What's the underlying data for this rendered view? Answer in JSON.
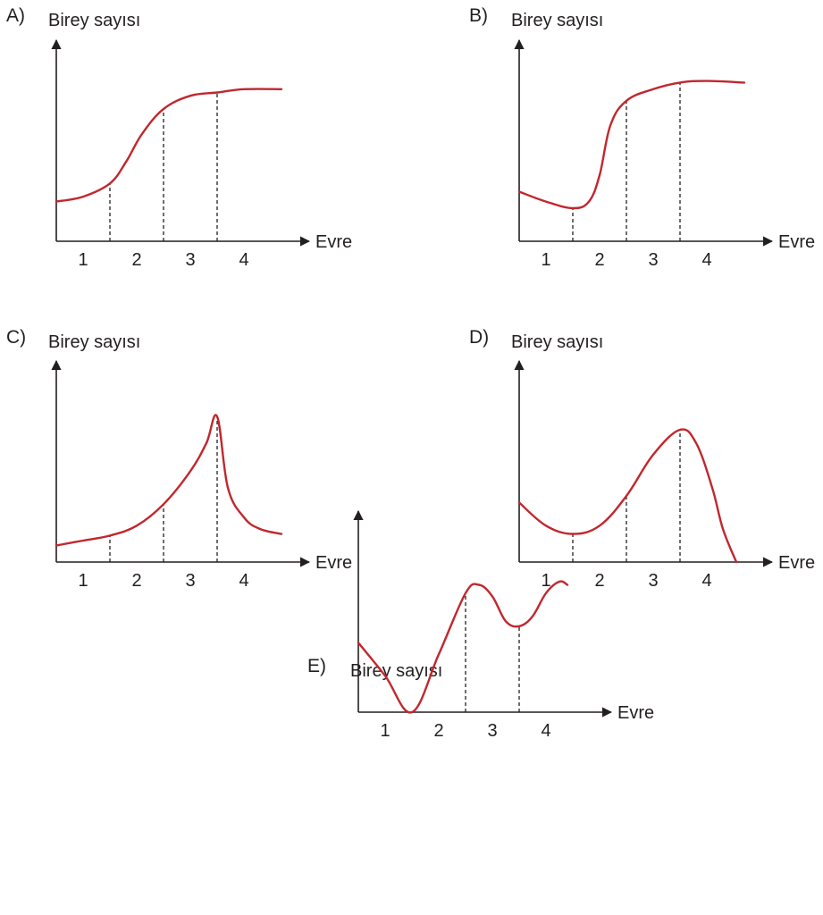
{
  "colors": {
    "curve": "#c1272d",
    "axis": "#231f20"
  },
  "chart_data": [
    {
      "type": "line",
      "option": "A)",
      "ylabel": "Birey sayısı",
      "xlabel": "Evre",
      "categories": [
        "1",
        "2",
        "3",
        "4"
      ],
      "xlim": [
        0.5,
        4.9
      ],
      "ylim": [
        0,
        1
      ],
      "grid": false,
      "markers": [
        1.5,
        2.5,
        3.5
      ],
      "x": [
        0.5,
        1.0,
        1.5,
        1.8,
        2.1,
        2.5,
        3.0,
        3.5,
        4.0,
        4.7
      ],
      "y": [
        0.24,
        0.27,
        0.35,
        0.48,
        0.65,
        0.8,
        0.88,
        0.9,
        0.92,
        0.92
      ]
    },
    {
      "type": "line",
      "option": "B)",
      "ylabel": "Birey sayısı",
      "xlabel": "Evre",
      "categories": [
        "1",
        "2",
        "3",
        "4"
      ],
      "xlim": [
        0.5,
        4.9
      ],
      "ylim": [
        0,
        1
      ],
      "grid": false,
      "markers": [
        1.5,
        2.5,
        3.5
      ],
      "x": [
        0.5,
        1.0,
        1.5,
        1.8,
        2.0,
        2.2,
        2.5,
        3.0,
        3.5,
        4.0,
        4.7
      ],
      "y": [
        0.3,
        0.24,
        0.2,
        0.24,
        0.4,
        0.7,
        0.85,
        0.92,
        0.96,
        0.97,
        0.96
      ]
    },
    {
      "type": "line",
      "option": "C)",
      "ylabel": "Birey sayısı",
      "xlabel": "Evre",
      "categories": [
        "1",
        "2",
        "3",
        "4"
      ],
      "xlim": [
        0.5,
        4.9
      ],
      "ylim": [
        0,
        1
      ],
      "grid": false,
      "markers": [
        1.5,
        2.5,
        3.5
      ],
      "x": [
        0.5,
        1.0,
        1.5,
        2.0,
        2.5,
        3.0,
        3.3,
        3.5,
        3.7,
        4.0,
        4.3,
        4.7
      ],
      "y": [
        0.1,
        0.13,
        0.16,
        0.22,
        0.35,
        0.55,
        0.72,
        0.88,
        0.45,
        0.27,
        0.2,
        0.17
      ]
    },
    {
      "type": "line",
      "option": "D)",
      "ylabel": "Birey sayısı",
      "xlabel": "Evre",
      "categories": [
        "1",
        "2",
        "3",
        "4"
      ],
      "xlim": [
        0.5,
        4.9
      ],
      "ylim": [
        0,
        1
      ],
      "grid": false,
      "markers": [
        1.5,
        2.5,
        3.5
      ],
      "x": [
        0.5,
        1.0,
        1.5,
        2.0,
        2.5,
        3.0,
        3.5,
        3.8,
        4.1,
        4.3,
        4.55
      ],
      "y": [
        0.36,
        0.22,
        0.17,
        0.22,
        0.4,
        0.65,
        0.8,
        0.72,
        0.45,
        0.2,
        0.0
      ]
    },
    {
      "type": "line",
      "option": "E)",
      "ylabel": "Birey sayısı",
      "xlabel": "Evre",
      "categories": [
        "1",
        "2",
        "3",
        "4"
      ],
      "xlim": [
        0.5,
        4.9
      ],
      "ylim": [
        0,
        1
      ],
      "grid": false,
      "markers": [
        2.5,
        3.5
      ],
      "x": [
        0.5,
        1.0,
        1.5,
        2.0,
        2.5,
        2.75,
        3.0,
        3.25,
        3.5,
        3.75,
        4.0,
        4.25,
        4.4
      ],
      "y": [
        0.42,
        0.22,
        0.0,
        0.35,
        0.72,
        0.77,
        0.7,
        0.55,
        0.52,
        0.58,
        0.72,
        0.79,
        0.77
      ]
    }
  ]
}
